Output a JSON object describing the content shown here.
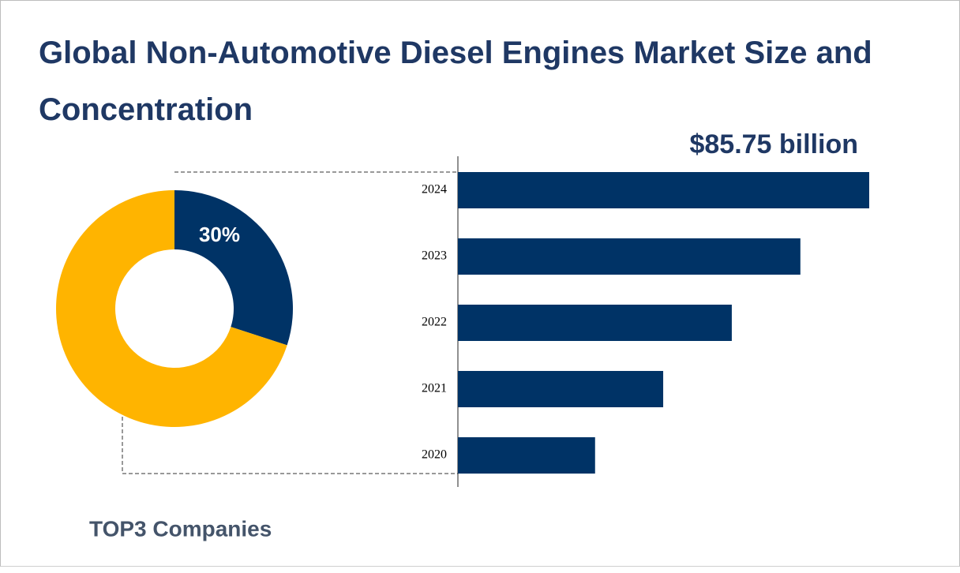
{
  "title": "Global Non-Automotive Diesel Engines Market Size and Concentration",
  "chart_data": [
    {
      "type": "pie",
      "categories": [
        "TOP3 Companies",
        null
      ],
      "values": [
        30,
        70
      ],
      "value_labels": [
        "30%",
        null
      ],
      "colors": [
        "#003366",
        "#ffb400"
      ],
      "hole": true
    },
    {
      "type": "hbar",
      "categories": [
        "2024",
        "2023",
        "2022",
        "2021",
        "2020"
      ],
      "values": [
        85.75,
        71.4,
        57.1,
        42.8,
        28.6
      ],
      "value_labels": [
        "$85.75 billion",
        null,
        null,
        null,
        null
      ],
      "color": "#003366"
    }
  ]
}
